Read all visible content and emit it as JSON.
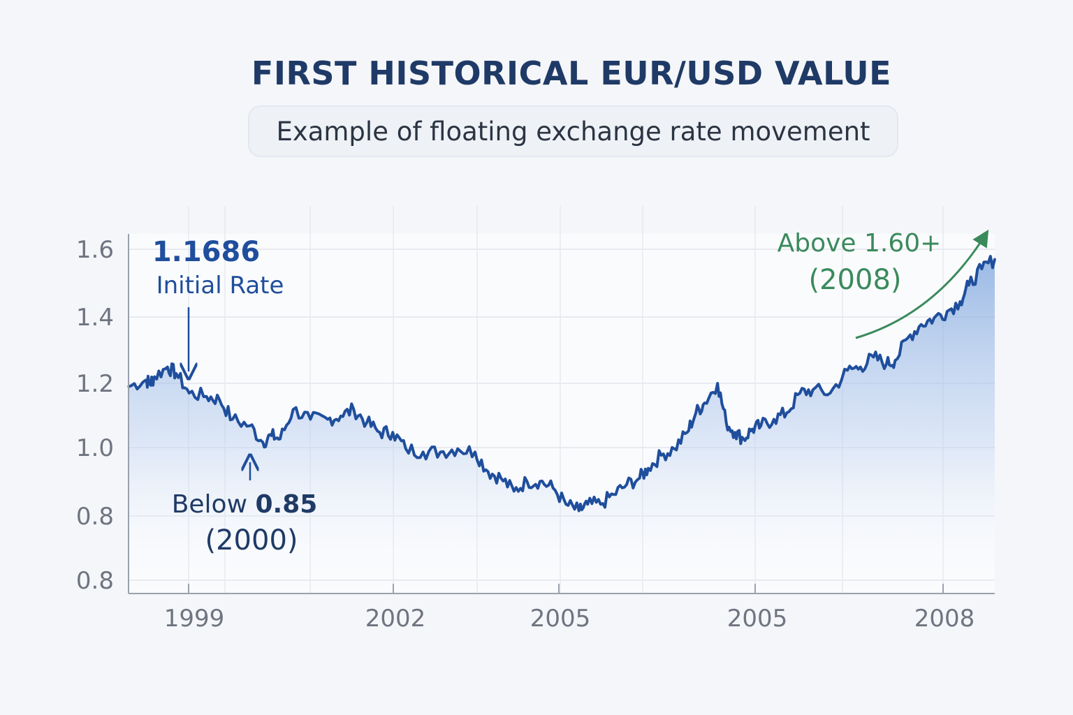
{
  "title": "FIRST HISTORICAL EUR/USD VALUE",
  "subtitle": "Example of floating exchange rate movement",
  "colors": {
    "line": "#1f4e9c",
    "fill": "#8fb3e3",
    "annotation_blue": "#1f4e9c",
    "annotation_green": "#3a8a5c",
    "title": "#1f3a66",
    "tick": "#6e7480"
  },
  "annotations": {
    "initial_value": "1.1686",
    "initial_label": "Initial Rate",
    "low_value": "0.85",
    "low_prefix": "Below ",
    "low_year": "(2000)",
    "high_label": "Above 1.60+",
    "high_year": "(2008)"
  },
  "chart_data": {
    "type": "area",
    "title": "FIRST HISTORICAL EUR/USD VALUE",
    "subtitle": "Example of floating exchange rate movement",
    "xlabel": "",
    "ylabel": "",
    "y_tick_labels": [
      "1.6",
      "1.4",
      "1.2",
      "1.0",
      "0.8",
      "0.8"
    ],
    "x_tick_labels": [
      "1999",
      "2002",
      "2005",
      "2005",
      "2008"
    ],
    "grid": true,
    "legend": "none",
    "series": [
      {
        "x": [
          0,
          0.02,
          0.025,
          0.03,
          0.045,
          0.055,
          0.07,
          0.09,
          0.105,
          0.12,
          0.14,
          0.155,
          0.165,
          0.175,
          0.19,
          0.21,
          0.23,
          0.245,
          0.26,
          0.275,
          0.29,
          0.305,
          0.32,
          0.34,
          0.36,
          0.38,
          0.4,
          0.415,
          0.43,
          0.445,
          0.46,
          0.475,
          0.49,
          0.505,
          0.52,
          0.53,
          0.545,
          0.56,
          0.575,
          0.59,
          0.6,
          0.615,
          0.63,
          0.645,
          0.655,
          0.665,
          0.68,
          0.69,
          0.7,
          0.71,
          0.72,
          0.73,
          0.745,
          0.76,
          0.775,
          0.79,
          0.81,
          0.83,
          0.845,
          0.86,
          0.875,
          0.885,
          0.9,
          0.915,
          0.93,
          0.945,
          0.96,
          0.97,
          0.985,
          1.0
        ],
        "values": [
          1.18,
          1.2,
          1.19,
          1.21,
          1.24,
          1.22,
          1.16,
          1.15,
          1.14,
          1.08,
          1.06,
          1.01,
          1.03,
          1.02,
          1.11,
          1.08,
          1.08,
          1.09,
          1.11,
          1.07,
          1.04,
          1.04,
          0.99,
          0.98,
          0.98,
          0.99,
          0.98,
          0.92,
          0.9,
          0.86,
          0.89,
          0.89,
          0.87,
          0.82,
          0.8,
          0.82,
          0.82,
          0.85,
          0.88,
          0.9,
          0.93,
          0.97,
          0.99,
          1.04,
          1.1,
          1.13,
          1.19,
          1.07,
          1.04,
          1.02,
          1.05,
          1.06,
          1.08,
          1.1,
          1.16,
          1.17,
          1.16,
          1.23,
          1.24,
          1.27,
          1.25,
          1.26,
          1.33,
          1.37,
          1.39,
          1.41,
          1.44,
          1.49,
          1.54,
          1.57
        ]
      }
    ]
  }
}
